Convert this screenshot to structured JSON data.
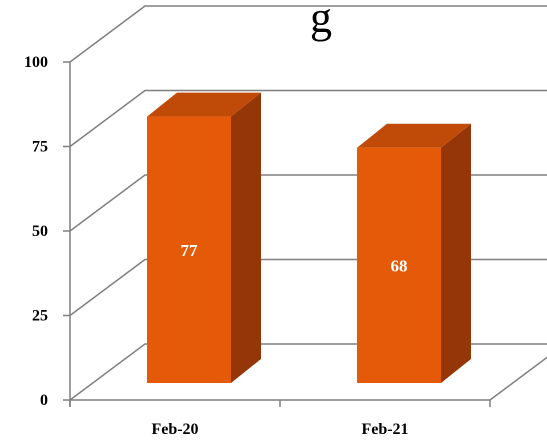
{
  "chart_data": {
    "type": "bar",
    "three_d": true,
    "categories": [
      "Feb-20",
      "Feb-21"
    ],
    "values": [
      77,
      68
    ],
    "ylim": [
      0,
      100
    ],
    "yticks": [
      0,
      25,
      50,
      75,
      100
    ],
    "ytick_labels": [
      "0",
      "25",
      "50",
      "75",
      "100"
    ],
    "data_labels": [
      "77",
      "68"
    ],
    "title_fragment": "g",
    "grid": true,
    "legend": "none",
    "colors": {
      "bar_front": "#e55a09",
      "bar_top": "#c04a07",
      "bar_side": "#943607",
      "grid": "#7f7f7f",
      "text": "#000000",
      "data_label": "#ffffff"
    }
  }
}
